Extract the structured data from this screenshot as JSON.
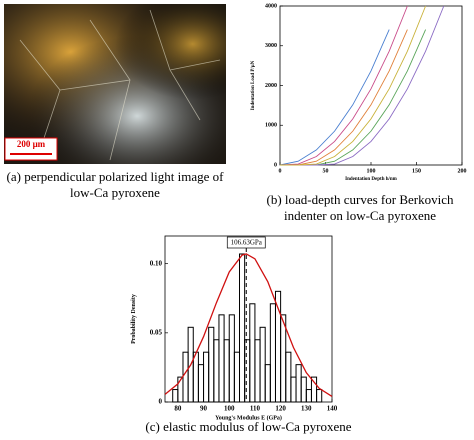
{
  "figure_a": {
    "scale_bar": "200 μm",
    "caption": [
      "(a) perpendicular polarized light image of",
      "low-Ca pyroxene"
    ]
  },
  "chart_data": [
    {
      "type": "line",
      "xlabel": "Indentation Depth h/nm",
      "ylabel": "Indentation Load P/μN",
      "caption": [
        "(b) load-depth curves for Berkovich",
        "indenter on low-Ca pyroxene"
      ],
      "xlim": [
        0,
        200
      ],
      "ylim": [
        0,
        4000
      ],
      "xticks": [
        0,
        50,
        100,
        150,
        200
      ],
      "yticks": [
        0,
        1000,
        2000,
        3000,
        4000
      ],
      "x": [
        0,
        20,
        40,
        60,
        80,
        100,
        120,
        140,
        160,
        180,
        200
      ],
      "series": [
        {
          "color": "#4a7fd0",
          "values": [
            0,
            95,
            379,
            852,
            1515,
            2367,
            3408,
            null,
            null,
            null,
            null
          ]
        },
        {
          "color": "#e0803a",
          "values": [
            0,
            0,
            95,
            379,
            852,
            1515,
            2367,
            3408,
            null,
            null,
            null
          ]
        },
        {
          "color": "#5aa55a",
          "values": [
            0,
            0,
            0,
            95,
            379,
            852,
            1515,
            2367,
            3408,
            null,
            null
          ]
        },
        {
          "color": "#c94c8a",
          "values": [
            0,
            24,
            213,
            592,
            1160,
            1917,
            2864,
            4000,
            null,
            null,
            null
          ]
        },
        {
          "color": "#8b6bc4",
          "values": [
            0,
            0,
            0,
            24,
            213,
            592,
            1160,
            1917,
            2864,
            4000,
            null
          ]
        },
        {
          "color": "#c9b23a",
          "values": [
            0,
            0,
            24,
            213,
            592,
            1160,
            1917,
            2864,
            4000,
            null,
            null
          ]
        }
      ]
    },
    {
      "type": "histogram",
      "xlabel": "Young's Modulus E (GPa)",
      "ylabel": "Probability Density",
      "caption": [
        "(c) elastic modulus of low-Ca pyroxene"
      ],
      "xlim": [
        75,
        140
      ],
      "ylim": [
        0,
        0.12
      ],
      "xticks": [
        80,
        90,
        100,
        110,
        120,
        130,
        140
      ],
      "yticks": [
        0,
        0.05,
        {
          "value": 0.1,
          "label": "0.10"
        }
      ],
      "bins": [
        78,
        80,
        82,
        84,
        86,
        88,
        90,
        92,
        94,
        96,
        98,
        100,
        102,
        104,
        106,
        108,
        110,
        112,
        114,
        116,
        118,
        120,
        122,
        124,
        126,
        128,
        130,
        132,
        134,
        136
      ],
      "values": [
        0.009,
        0.018,
        0.036,
        0.054,
        0.036,
        0.027,
        0.036,
        0.054,
        0.045,
        0.063,
        0.045,
        0.063,
        0.036,
        0.107,
        0.045,
        0.071,
        0.045,
        0.054,
        0.027,
        0.071,
        0.08,
        0.063,
        0.036,
        0.018,
        0.027,
        0.018,
        0.009,
        0.018,
        0.009
      ],
      "color": "#000000",
      "curve": {
        "color": "#d01010",
        "x": [
          75,
          80,
          85,
          90,
          95,
          100,
          105,
          106.63,
          110,
          115,
          120,
          125,
          130,
          135,
          140
        ],
        "values": [
          0.0055,
          0.0131,
          0.0268,
          0.0472,
          0.0717,
          0.094,
          0.1062,
          0.107,
          0.1035,
          0.087,
          0.063,
          0.0394,
          0.0212,
          0.0099,
          0.004
        ]
      },
      "vline": 106.63,
      "annotation": "106.63GPa"
    }
  ]
}
